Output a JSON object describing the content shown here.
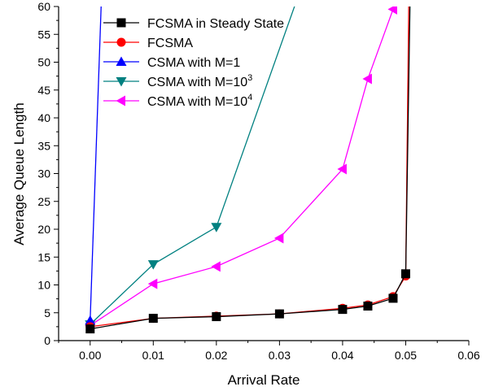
{
  "chart_data": {
    "type": "line",
    "title": "",
    "xlabel": "Arrival Rate",
    "ylabel": "Average Queue Length",
    "xlim": [
      -0.005,
      0.06
    ],
    "ylim": [
      0,
      60
    ],
    "x_ticks": [
      0.0,
      0.01,
      0.02,
      0.03,
      0.04,
      0.05,
      0.06
    ],
    "x_tick_labels": [
      "0.00",
      "0.01",
      "0.02",
      "0.03",
      "0.04",
      "0.05",
      "0.06"
    ],
    "y_ticks": [
      0,
      5,
      10,
      15,
      20,
      25,
      30,
      35,
      40,
      45,
      50,
      55,
      60
    ],
    "y_tick_labels": [
      "0",
      "5",
      "10",
      "15",
      "20",
      "25",
      "30",
      "35",
      "40",
      "45",
      "50",
      "55",
      "60"
    ],
    "grid": false,
    "legend_position": "top-left",
    "series": [
      {
        "name": "FCSMA in Steady State",
        "color": "#000000",
        "marker": "square",
        "points": [
          [
            0.0,
            2.1
          ],
          [
            0.01,
            4.0
          ],
          [
            0.02,
            4.3
          ],
          [
            0.03,
            4.8
          ],
          [
            0.04,
            5.6
          ],
          [
            0.044,
            6.2
          ],
          [
            0.048,
            7.6
          ],
          [
            0.05,
            12.0
          ],
          [
            0.0507,
            62.0
          ]
        ],
        "marker_count": 8
      },
      {
        "name": "FCSMA",
        "color": "#ff0000",
        "marker": "circle",
        "points": [
          [
            0.0,
            2.5
          ],
          [
            0.01,
            4.0
          ],
          [
            0.02,
            4.4
          ],
          [
            0.03,
            4.8
          ],
          [
            0.04,
            5.8
          ],
          [
            0.044,
            6.4
          ],
          [
            0.048,
            7.9
          ],
          [
            0.05,
            11.6
          ],
          [
            0.0505,
            62.0
          ]
        ],
        "marker_count": 8
      },
      {
        "name": "CSMA with M=1",
        "color": "#0000ff",
        "marker": "triangle-up",
        "points": [
          [
            0.0,
            3.6
          ],
          [
            0.0018,
            62.0
          ]
        ],
        "marker_count": 1
      },
      {
        "name_base": "CSMA with M=10",
        "name_sup": "3",
        "color": "#008080",
        "marker": "triangle-down",
        "points": [
          [
            0.0,
            2.9
          ],
          [
            0.01,
            13.7
          ],
          [
            0.02,
            20.4
          ],
          [
            0.033,
            62.0
          ]
        ],
        "marker_count": 3
      },
      {
        "name_base": "CSMA with M=10",
        "name_sup": "4",
        "color": "#ff00ff",
        "marker": "triangle-left",
        "points": [
          [
            0.0,
            2.7
          ],
          [
            0.01,
            10.2
          ],
          [
            0.02,
            13.3
          ],
          [
            0.03,
            18.4
          ],
          [
            0.04,
            30.8
          ],
          [
            0.044,
            47.0
          ],
          [
            0.048,
            59.5
          ],
          [
            0.0488,
            62.0
          ]
        ],
        "marker_count": 7
      }
    ]
  }
}
